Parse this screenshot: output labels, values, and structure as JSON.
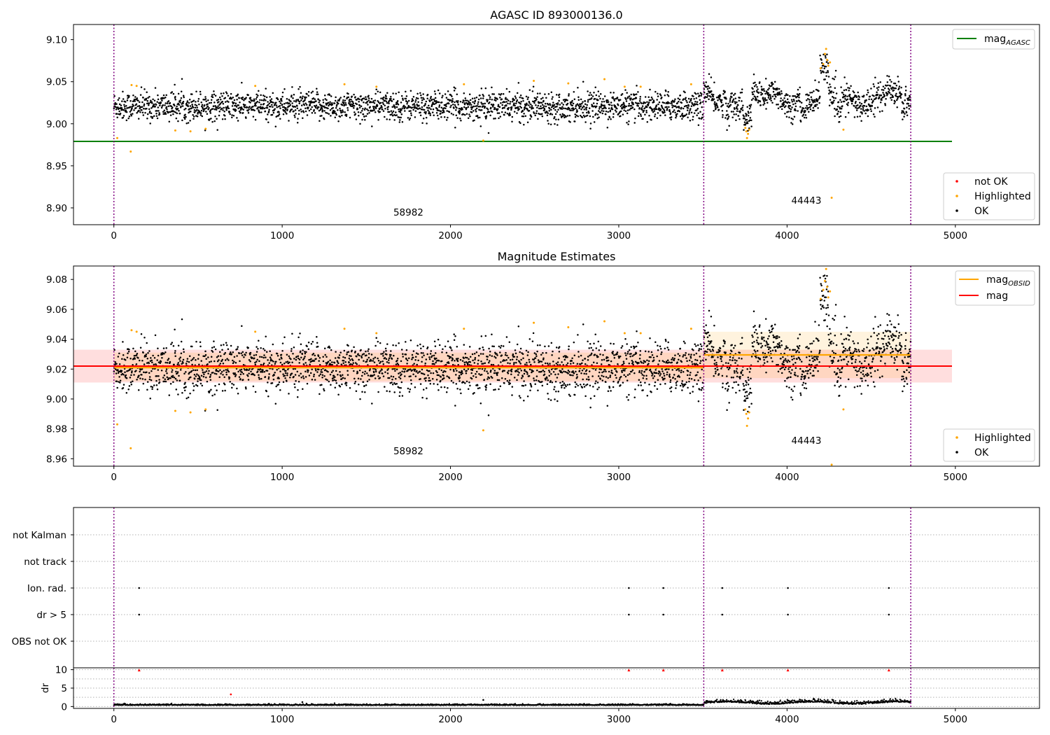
{
  "colors": {
    "ok": "#000000",
    "highlighted": "#ffa500",
    "not_ok": "#ff0000",
    "mag_agasc_line": "#008000",
    "mag_obsid_line": "#ffa500",
    "mag_line": "#ff0000",
    "obsid_boundary": "#800080",
    "grid": "#b0b0b0"
  },
  "chart_data": [
    {
      "type": "scatter",
      "title": "AGASC ID 893000136.0",
      "xlabel": "",
      "ylabel": "",
      "xlim": [
        -240,
        5500
      ],
      "ylim": [
        8.88,
        9.118
      ],
      "xticks": [
        "0",
        "1000",
        "2000",
        "3000",
        "4000",
        "5000"
      ],
      "yticks": [
        "8.90",
        "8.95",
        "9.00",
        "9.05",
        "9.10"
      ],
      "vertical_lines_x": [
        0,
        3505,
        4735
      ],
      "obsid_labels": [
        {
          "text": "58982",
          "x": 1750,
          "y": 8.891
        },
        {
          "text": "44443",
          "x": 4115,
          "y": 8.905
        }
      ],
      "reference_lines": [
        {
          "name": "mag",
          "subscript": "AGASC",
          "y": 8.979,
          "x_range": [
            -240,
            4980
          ]
        }
      ],
      "line_legend": "top-right",
      "point_legend": "bottom-right",
      "series": [
        {
          "name": "not OK",
          "marker": "dot",
          "values": []
        },
        {
          "name": "Highlighted",
          "marker": "dot",
          "values": [
            [
              20,
              8.983
            ],
            [
              100,
              8.967
            ],
            [
              105,
              9.046
            ],
            [
              135,
              9.045
            ],
            [
              365,
              8.992
            ],
            [
              455,
              8.991
            ],
            [
              545,
              8.994
            ],
            [
              840,
              9.045
            ],
            [
              1370,
              9.047
            ],
            [
              1560,
              9.044
            ],
            [
              2080,
              9.047
            ],
            [
              2195,
              8.98
            ],
            [
              2495,
              9.051
            ],
            [
              2700,
              9.048
            ],
            [
              2915,
              9.053
            ],
            [
              3035,
              9.044
            ],
            [
              3130,
              9.044
            ],
            [
              3430,
              9.047
            ],
            [
              3752,
              8.995
            ],
            [
              3758,
              8.991
            ],
            [
              3762,
              8.983
            ],
            [
              3768,
              8.988
            ],
            [
              3775,
              8.993
            ],
            [
              4200,
              9.066
            ],
            [
              4215,
              9.071
            ],
            [
              4225,
              9.083
            ],
            [
              4232,
              9.089
            ],
            [
              4238,
              9.076
            ],
            [
              4245,
              9.069
            ],
            [
              4255,
              9.073
            ],
            [
              4265,
              8.912
            ],
            [
              4335,
              8.993
            ]
          ]
        },
        {
          "name": "OK",
          "marker": "dot",
          "values": []
        }
      ]
    },
    {
      "type": "scatter",
      "title": "Magnitude Estimates",
      "xlabel": "",
      "ylabel": "",
      "xlim": [
        -240,
        5500
      ],
      "ylim": [
        8.955,
        9.089
      ],
      "xticks": [
        "0",
        "1000",
        "2000",
        "3000",
        "4000",
        "5000"
      ],
      "yticks": [
        "8.96",
        "8.98",
        "9.00",
        "9.02",
        "9.04",
        "9.06",
        "9.08"
      ],
      "vertical_lines_x": [
        0,
        3505,
        4735
      ],
      "obsid_labels": [
        {
          "text": "58982",
          "x": 1750,
          "y": 8.963
        },
        {
          "text": "44443",
          "x": 4115,
          "y": 8.97
        }
      ],
      "reference_lines": [
        {
          "name": "mag",
          "subscript": "OBSID",
          "segments": [
            {
              "x_range": [
                0,
                3505
              ],
              "y": 9.021,
              "band": [
                9.012,
                9.031
              ]
            },
            {
              "x_range": [
                3505,
                4735
              ],
              "y": 9.0295,
              "band": [
                9.014,
                9.045
              ]
            }
          ]
        },
        {
          "name": "mag",
          "subscript": "",
          "y": 9.022,
          "band": [
            9.011,
            9.033
          ],
          "x_range": [
            -240,
            4980
          ]
        }
      ],
      "line_legend": "top-right",
      "point_legend": "bottom-right",
      "series": [
        {
          "name": "Highlighted",
          "marker": "dot",
          "values": [
            [
              20,
              8.983
            ],
            [
              100,
              8.967
            ],
            [
              105,
              9.046
            ],
            [
              135,
              9.045
            ],
            [
              365,
              8.992
            ],
            [
              455,
              8.991
            ],
            [
              545,
              8.993
            ],
            [
              840,
              9.045
            ],
            [
              1370,
              9.047
            ],
            [
              1560,
              9.044
            ],
            [
              2080,
              9.047
            ],
            [
              2195,
              8.979
            ],
            [
              2495,
              9.051
            ],
            [
              2700,
              9.048
            ],
            [
              2915,
              9.052
            ],
            [
              3035,
              9.044
            ],
            [
              3130,
              9.044
            ],
            [
              3430,
              9.047
            ],
            [
              3752,
              8.993
            ],
            [
              3758,
              8.99
            ],
            [
              3762,
              8.982
            ],
            [
              3768,
              8.987
            ],
            [
              3775,
              8.991
            ],
            [
              4200,
              9.067
            ],
            [
              4215,
              9.073
            ],
            [
              4225,
              9.079
            ],
            [
              4232,
              9.087
            ],
            [
              4238,
              9.075
            ],
            [
              4245,
              9.068
            ],
            [
              4255,
              9.072
            ],
            [
              4265,
              8.956
            ],
            [
              4335,
              8.993
            ]
          ]
        },
        {
          "name": "OK",
          "marker": "dot",
          "values": []
        }
      ]
    },
    {
      "type": "scatter",
      "title": "",
      "xlabel": "",
      "ylabel": "",
      "xlim": [
        -240,
        5500
      ],
      "xticks": [
        "0",
        "1000",
        "2000",
        "3000",
        "4000",
        "5000"
      ],
      "flag_rows": [
        "not Kalman",
        "not track",
        "Ion. rad.",
        "dr > 5",
        "OBS not OK"
      ],
      "vertical_lines_x": [
        0,
        3505,
        4735
      ],
      "flags": [
        {
          "row": "Ion. rad.",
          "x": [
            150,
            3060,
            3265,
            3615,
            4005,
            4605
          ]
        },
        {
          "row": "dr > 5",
          "x": [
            150,
            3060,
            3265,
            3615,
            4005,
            4605
          ]
        }
      ],
      "grid": true
    },
    {
      "type": "scatter",
      "title": "",
      "xlabel": "",
      "ylabel": "dr",
      "xlim": [
        -240,
        5500
      ],
      "ylim": [
        -0.5,
        10.5
      ],
      "xticks": [
        "0",
        "1000",
        "2000",
        "3000",
        "4000",
        "5000"
      ],
      "yticks": [
        "0",
        "5",
        "10"
      ],
      "vertical_lines_x": [
        0,
        3505,
        4735
      ],
      "clipped_markers": [
        150,
        3060,
        3265,
        3615,
        4005,
        4605
      ],
      "outliers": [
        [
          695,
          3.3
        ],
        [
          2195,
          1.8
        ],
        [
          1120,
          1.2
        ]
      ],
      "series": [
        {
          "name": "dr",
          "marker": "dot",
          "values": []
        }
      ]
    }
  ]
}
